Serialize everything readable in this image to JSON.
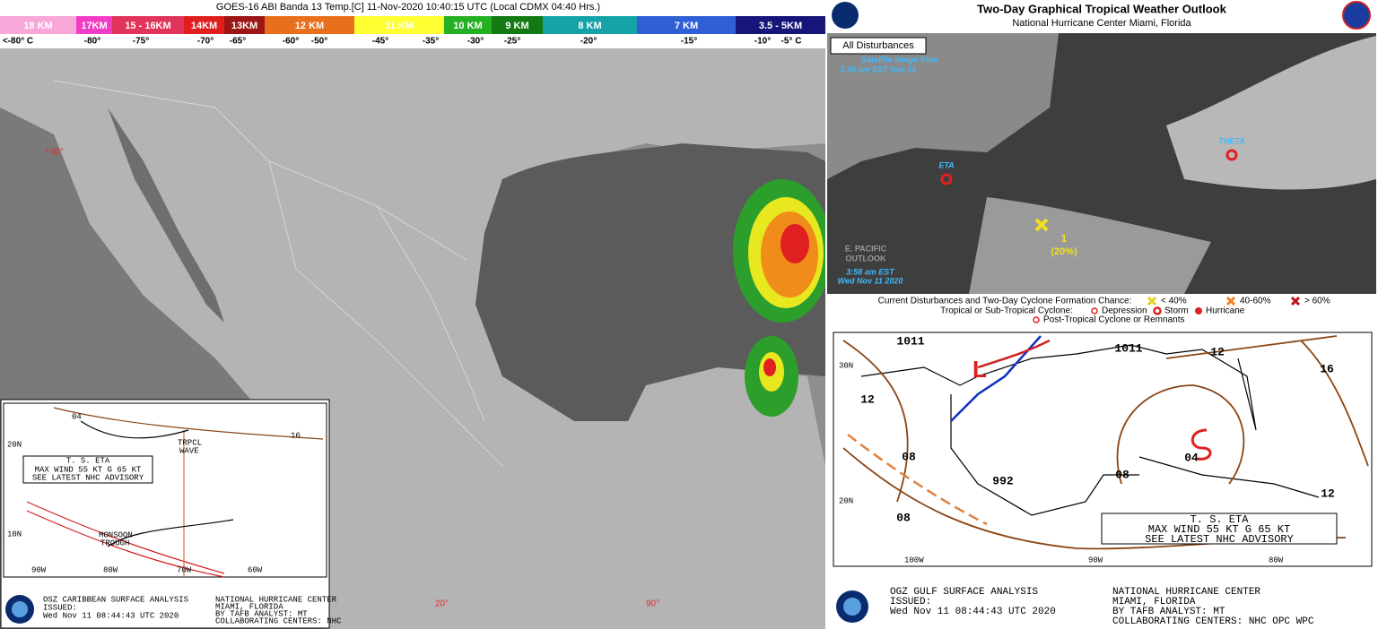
{
  "satellite": {
    "title": "GOES-16 ABI Banda 13 Temp.[C] 11-Nov-2020 10:40:15 UTC (Local CDMX  04:40 Hrs.)",
    "bands": [
      {
        "label": "18 KM",
        "color": "#f7a8d8"
      },
      {
        "label": "17KM",
        "color": "#f23cc4"
      },
      {
        "label": "15 - 16KM",
        "color": "#e0345a"
      },
      {
        "label": "14KM",
        "color": "#e01e1e"
      },
      {
        "label": "13KM",
        "color": "#9c1616"
      },
      {
        "label": "12 KM",
        "color": "#e8701c"
      },
      {
        "label": "11 KM",
        "color": "#ffff33"
      },
      {
        "label": "10 KM",
        "color": "#23b023"
      },
      {
        "label": "9 KM",
        "color": "#137a13"
      },
      {
        "label": "8 KM",
        "color": "#16a3a8"
      },
      {
        "label": "7 KM",
        "color": "#2f5fd4"
      },
      {
        "label": "3.5 - 5KM",
        "color": "#15157a"
      }
    ],
    "temperatures": [
      "<-80° C",
      "-80°",
      "-75°",
      "-70°",
      "-65°",
      "-60°",
      "-50°",
      "-45°",
      "-35°",
      "-30°",
      "-25°",
      "-20°",
      "-15°",
      "-10°",
      "-5° C"
    ],
    "grid_labels": [
      "+30°",
      "20°",
      "90°"
    ]
  },
  "caribbean_analysis": {
    "map_labels": [
      "04",
      "16",
      "TRPCL",
      "WAVE",
      "MONSOON",
      "TROUGH"
    ],
    "advisory": [
      "T. S. ETA",
      "MAX WIND 55 KT G 65 KT",
      "SEE LATEST NHC ADVISORY"
    ],
    "axis_labels": [
      "20N",
      "10N",
      "90W",
      "80W",
      "70W",
      "60W"
    ],
    "footer_left": [
      "OSZ CARIBBEAN SURFACE ANALYSIS",
      "ISSUED:",
      "Wed Nov 11 08:44:43 UTC 2020"
    ],
    "footer_right": [
      "NATIONAL HURRICANE CENTER",
      "MIAMI, FLORIDA",
      "BY TAFB ANALYST: MT",
      "COLLABORATING CENTERS: NHC"
    ]
  },
  "outlook": {
    "title": "Two-Day Graphical Tropical Weather Outlook",
    "subtitle": "National Hurricane Center  Miami, Florida",
    "tab": "All Disturbances",
    "storms": [
      "ETA",
      "THETA"
    ],
    "disturbance": "1",
    "chance": "(20%)",
    "satellite_note": [
      "Satellite Image from",
      "3:30 am EST Nov 11"
    ],
    "pacific": [
      "E. PACIFIC",
      "OUTLOOK"
    ],
    "timestamp": [
      "3:58 am EST",
      "Wed Nov 11 2020"
    ]
  },
  "legend": {
    "line1": "Current Disturbances and Two-Day Cyclone Formation Chance:",
    "chances": [
      "< 40%",
      "40-60%",
      "> 60%"
    ],
    "line2": "Tropical or Sub-Tropical Cyclone:",
    "types": [
      "Depression",
      "Storm",
      "Hurricane"
    ],
    "line3": "Post-Tropical Cyclone or Remnants"
  },
  "gulf_analysis": {
    "low": "L",
    "isobars": [
      "1011",
      "1011",
      "12",
      "16",
      "12",
      "08",
      "08",
      "992",
      "04",
      "12",
      "08"
    ],
    "advisory": [
      "T. S. ETA",
      "MAX WIND 55 KT G 65 KT",
      "SEE LATEST NHC ADVISORY"
    ],
    "axis_labels": [
      "30N",
      "20N",
      "100W",
      "90W",
      "80W"
    ],
    "footer_left": [
      "OGZ GULF SURFACE ANALYSIS",
      "ISSUED:",
      "Wed Nov 11 08:44:43 UTC 2020"
    ],
    "footer_right": [
      "NATIONAL HURRICANE CENTER",
      "MIAMI, FLORIDA",
      "BY TAFB ANALYST: MT",
      "COLLABORATING CENTERS: NHC OPC WPC"
    ]
  }
}
